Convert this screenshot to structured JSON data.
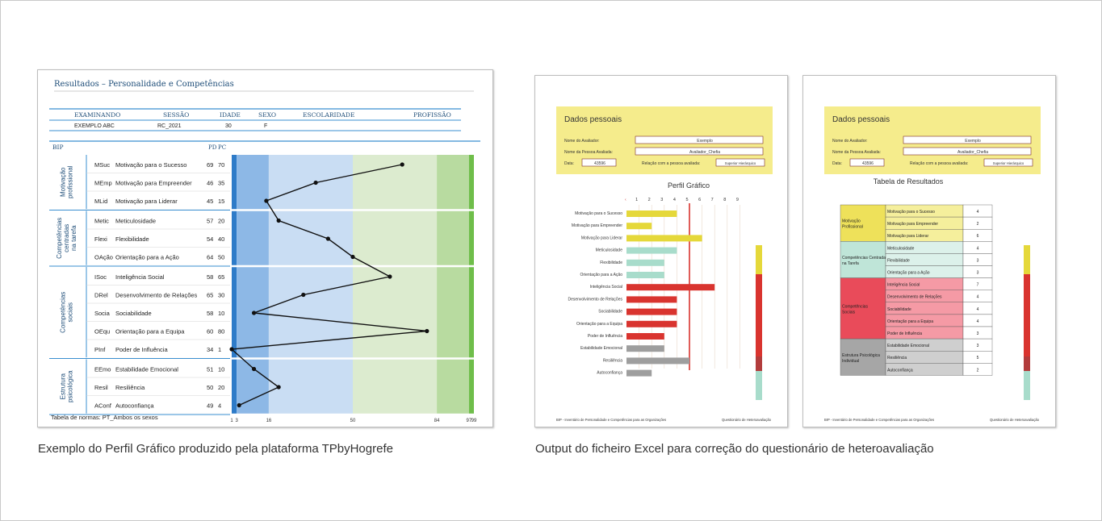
{
  "bip": {
    "title": "Resultados – Personalidade e Competências",
    "headers": [
      "EXAMINANDO",
      "SESSÃO",
      "IDADE",
      "SEXO",
      "ESCOLARIDADE",
      "PROFISSÃO"
    ],
    "row": [
      "EXEMPLO ABC",
      "RC_2021",
      "30",
      "F",
      "",
      ""
    ],
    "bip_label": "BIP",
    "pd_label": "PD",
    "pc_label": "PC",
    "groups": [
      {
        "label": "Motivação profissional",
        "items": [
          {
            "code": "MSuc",
            "name": "Motivação para o Sucesso",
            "pd": "69",
            "pc": "70"
          },
          {
            "code": "MEmp",
            "name": "Motivação para Empreender",
            "pd": "46",
            "pc": "35"
          },
          {
            "code": "MLid",
            "name": "Motivação para Liderar",
            "pd": "45",
            "pc": "15"
          }
        ]
      },
      {
        "label": "Competências centradas na tarefa",
        "items": [
          {
            "code": "Metic",
            "name": "Meticulosidade",
            "pd": "57",
            "pc": "20"
          },
          {
            "code": "Flexi",
            "name": "Flexibilidade",
            "pd": "54",
            "pc": "40"
          },
          {
            "code": "OAção",
            "name": "Orientação para a Ação",
            "pd": "64",
            "pc": "50"
          }
        ]
      },
      {
        "label": "Competências sociais",
        "items": [
          {
            "code": "ISoc",
            "name": "Inteligência Social",
            "pd": "58",
            "pc": "65"
          },
          {
            "code": "DRel",
            "name": "Desenvolvimento de Relações",
            "pd": "65",
            "pc": "30"
          },
          {
            "code": "Socia",
            "name": "Sociabilidade",
            "pd": "58",
            "pc": "10"
          },
          {
            "code": "OEqu",
            "name": "Orientação para a Equipa",
            "pd": "60",
            "pc": "80"
          },
          {
            "code": "PInf",
            "name": "Poder de Influência",
            "pd": "34",
            "pc": "1"
          }
        ]
      },
      {
        "label": "Estrutura psicológica",
        "items": [
          {
            "code": "EEmo",
            "name": "Estabilidade Emocional",
            "pd": "51",
            "pc": "10"
          },
          {
            "code": "Resil",
            "name": "Resiliência",
            "pd": "50",
            "pc": "20"
          },
          {
            "code": "AConf",
            "name": "Autoconfiança",
            "pd": "49",
            "pc": "4"
          }
        ]
      }
    ],
    "axis_ticks": [
      "1",
      "3",
      "16",
      "50",
      "84",
      "97",
      "99"
    ],
    "norms": "Tabela de normas: PT_Ambos os sexos"
  },
  "chart_data": {
    "type": "line",
    "categories": [
      "MSuc",
      "MEmp",
      "MLid",
      "Metic",
      "Flexi",
      "OAção",
      "ISoc",
      "DRel",
      "Socia",
      "OEqu",
      "PInf",
      "EEmo",
      "Resil",
      "AConf"
    ],
    "values": [
      70,
      35,
      15,
      20,
      40,
      50,
      65,
      30,
      10,
      80,
      1,
      10,
      20,
      4
    ],
    "xticks": [
      1,
      3,
      16,
      50,
      84,
      97,
      99
    ],
    "xlim": [
      1,
      99
    ]
  },
  "form": {
    "section_title": "Dados pessoais",
    "evaluator_label": "Nome do Avaliador:",
    "evaluator_value": "Exemplo",
    "evaluated_label": "Nome da Pessoa Avaliada:",
    "evaluated_value": "Avaliador_Chefia",
    "date_label": "Data:",
    "date_value": "43596",
    "relation_label": "Relação com a pessoa avaliada:",
    "relation_value": "Superior Hierárquico",
    "footer_left": "BIP - Inventário de Personalidade e Competências para as Organizações",
    "footer_right": "Questionário de Heteroavaliação"
  },
  "perfil": {
    "title": "Perfil Gráfico",
    "scale": [
      "1",
      "2",
      "3",
      "4",
      "5",
      "6",
      "7",
      "8",
      "9"
    ],
    "items": [
      {
        "name": "Motivação para o Sucesso",
        "value": 4,
        "color": "#e5d83a"
      },
      {
        "name": "Motivação para Empreender",
        "value": 2,
        "color": "#e5d83a"
      },
      {
        "name": "Motivação para Liderar",
        "value": 6,
        "color": "#e5d83a"
      },
      {
        "name": "Meticulosidade",
        "value": 4,
        "color": "#a8dccb"
      },
      {
        "name": "Flexibilidade",
        "value": 3,
        "color": "#a8dccb"
      },
      {
        "name": "Orientação para a Ação",
        "value": 3,
        "color": "#a8dccb"
      },
      {
        "name": "Inteligência Social",
        "value": 7,
        "color": "#d9342f"
      },
      {
        "name": "Desenvolvimento de Relações",
        "value": 4,
        "color": "#d9342f"
      },
      {
        "name": "Sociabilidade",
        "value": 4,
        "color": "#d9342f"
      },
      {
        "name": "Orientação para a Equipa",
        "value": 4,
        "color": "#d9342f"
      },
      {
        "name": "Poder de Influência",
        "value": 3,
        "color": "#d9342f"
      },
      {
        "name": "Estabilidade Emocional",
        "value": 3,
        "color": "#9e9e9e"
      },
      {
        "name": "Resiliência",
        "value": 5,
        "color": "#9e9e9e"
      },
      {
        "name": "Autoconfiança",
        "value": 2,
        "color": "#9e9e9e"
      }
    ]
  },
  "tabela": {
    "title": "Tabela de Resultados",
    "groups": [
      {
        "label": "Motivação Profissional",
        "color": "#eee15a",
        "light": "#f5ef9c",
        "rows": [
          [
            "Motivação para o Sucesso",
            "4"
          ],
          [
            "Motivação para Empreender",
            "2"
          ],
          [
            "Motivação para Liderar",
            "6"
          ]
        ]
      },
      {
        "label": "Competências Centradas na Tarefa",
        "color": "#bfe5d8",
        "light": "#dcf1ea",
        "rows": [
          [
            "Meticulosidade",
            "4"
          ],
          [
            "Flexibilidade",
            "3"
          ],
          [
            "Orientação para a Ação",
            "3"
          ]
        ]
      },
      {
        "label": "Competências Sociais",
        "color": "#e94b5a",
        "light": "#f59aa5",
        "rows": [
          [
            "Inteligência Social",
            "7"
          ],
          [
            "Desenvolvimento de Relações",
            "4"
          ],
          [
            "Sociabilidade",
            "4"
          ],
          [
            "Orientação para a Equipa",
            "4"
          ],
          [
            "Poder de Influência",
            "3"
          ]
        ]
      },
      {
        "label": "Estrutura Psicológica Individual",
        "color": "#a6a6a6",
        "light": "#cfcfcf",
        "rows": [
          [
            "Estabilidade Emocional",
            "3"
          ],
          [
            "Resiliência",
            "5"
          ],
          [
            "Autoconfiança",
            "2"
          ]
        ]
      }
    ]
  },
  "captions": {
    "left": "Exemplo do Perfil Gráfico produzido pela plataforma TPbyHogrefe",
    "right": "Output do ficheiro Excel para correção do questionário de heteroavaliação"
  }
}
